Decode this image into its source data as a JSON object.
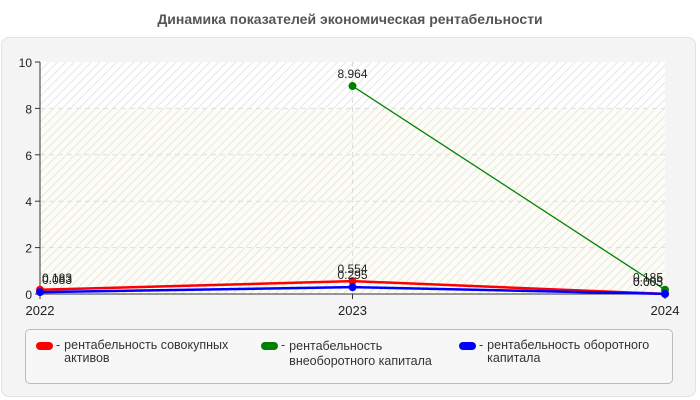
{
  "title": "Динамика показателей экономическая рентабельности",
  "chart_data": {
    "type": "line",
    "title": "Динамика показателей экономическая рентабельности",
    "xlabel": "",
    "ylabel": "",
    "categories": [
      "2022",
      "2023",
      "2024"
    ],
    "ylim": [
      0,
      10
    ],
    "yticks": [
      "0",
      "2",
      "4",
      "6",
      "8",
      "10"
    ],
    "grid": true,
    "legend_position": "bottom",
    "series": [
      {
        "name": "рентабельность совокупных активов",
        "color": "#ff0000",
        "values": [
          0.183,
          0.554,
          0.005
        ],
        "labels": [
          "0.183",
          "0.554",
          "0.005"
        ]
      },
      {
        "name": "рентабельность внеоборотного капитала",
        "color": "#008000",
        "values": [
          null,
          8.964,
          0.185
        ],
        "labels": [
          "",
          "8.964",
          "0.185"
        ]
      },
      {
        "name": "рентабельность оборотного капитала",
        "color": "#0000ff",
        "values": [
          0.083,
          0.295,
          0.003
        ],
        "labels": [
          "0.083",
          "0.295",
          "0.003"
        ]
      }
    ]
  },
  "legend": {
    "items": [
      {
        "dash": "-",
        "label": "рентабельность совокупных активов",
        "color": "#ff0000"
      },
      {
        "dash": "-",
        "label": "рентабельность внеоборотного капитала",
        "color": "#008000"
      },
      {
        "dash": "-",
        "label": "рентабельность оборотного капитала",
        "color": "#0000ff"
      }
    ]
  }
}
